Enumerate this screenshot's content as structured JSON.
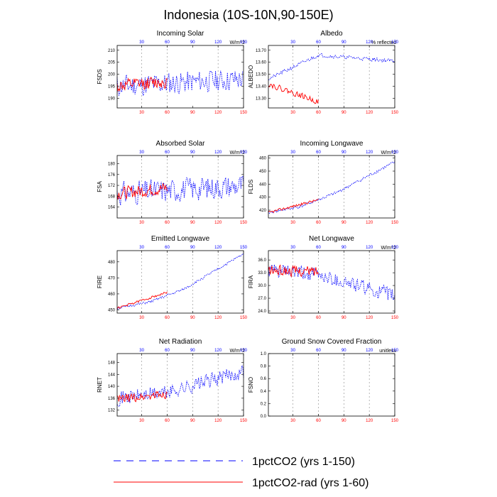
{
  "figure": {
    "title": "Indonesia (10S-10N,90-150E)",
    "colors": {
      "blue": "#0000ff",
      "red": "#ff0000",
      "grid": "#888888"
    }
  },
  "legend": [
    {
      "label": "1pctCO2 (yrs 1-150)",
      "color": "#0000ff",
      "style": "dashed"
    },
    {
      "label": "1pctCO2-rad (yrs 1-60)",
      "color": "#ff0000",
      "style": "solid"
    }
  ],
  "x_ticks": [
    "30",
    "60",
    "90",
    "120",
    "150"
  ],
  "chart_data": [
    {
      "type": "line",
      "title": "Incoming Solar",
      "ylabel": "FSDS",
      "units": "W/m^2",
      "ylim": [
        186,
        212
      ],
      "yticks": [
        190,
        195,
        200,
        205,
        210
      ],
      "ytick_labels": [
        "190",
        "195",
        "200",
        "205",
        "210"
      ],
      "xlim": [
        1,
        150
      ],
      "vgrid": [
        30,
        60,
        120
      ],
      "series": [
        {
          "name": "1pctCO2 (yrs 1-150)",
          "color": "#0000ff",
          "style": "dashed",
          "x": [
            1,
            150
          ],
          "y_mean": [
            195,
            198
          ],
          "y_amp": 6,
          "seed": 11
        },
        {
          "name": "1pctCO2-rad (yrs 1-60)",
          "color": "#ff0000",
          "style": "solid",
          "x": [
            1,
            60
          ],
          "y_mean": [
            195,
            197
          ],
          "y_amp": 3.5,
          "seed": 12
        }
      ]
    },
    {
      "type": "line",
      "title": "Albedo",
      "ylabel": "ALBEDO",
      "units": "% reflected",
      "ylim": [
        13.22,
        13.74
      ],
      "yticks": [
        13.3,
        13.4,
        13.5,
        13.6,
        13.7
      ],
      "ytick_labels": [
        "13.30",
        "13.40",
        "13.50",
        "13.60",
        "13.70"
      ],
      "xlim": [
        1,
        150
      ],
      "vgrid": [
        30,
        60,
        90,
        120
      ],
      "series": [
        {
          "name": "1pctCO2 (yrs 1-150)",
          "color": "#0000ff",
          "style": "dashed",
          "x": [
            1,
            60,
            150
          ],
          "y_mean": [
            13.46,
            13.66,
            13.61
          ],
          "y_amp": 0.02,
          "seed": 21
        },
        {
          "name": "1pctCO2-rad (yrs 1-60)",
          "color": "#ff0000",
          "style": "solid",
          "x": [
            1,
            60
          ],
          "y_mean": [
            13.42,
            13.27
          ],
          "y_amp": 0.03,
          "seed": 22
        }
      ]
    },
    {
      "type": "line",
      "title": "Absorbed Solar",
      "ylabel": "FSA",
      "units": "W/m^2",
      "ylim": [
        160,
        183
      ],
      "yticks": [
        164,
        168,
        172,
        176,
        180
      ],
      "ytick_labels": [
        "164",
        "168",
        "172",
        "176",
        "180"
      ],
      "xlim": [
        1,
        150
      ],
      "vgrid": [
        30,
        60,
        120
      ],
      "series": [
        {
          "name": "1pctCO2 (yrs 1-150)",
          "color": "#0000ff",
          "style": "dashed",
          "x": [
            1,
            150
          ],
          "y_mean": [
            169,
            172
          ],
          "y_amp": 5.5,
          "seed": 31
        },
        {
          "name": "1pctCO2-rad (yrs 1-60)",
          "color": "#ff0000",
          "style": "solid",
          "x": [
            1,
            60
          ],
          "y_mean": [
            169,
            171
          ],
          "y_amp": 3,
          "seed": 32
        }
      ]
    },
    {
      "type": "line",
      "title": "Incoming Longwave",
      "ylabel": "FLDS",
      "units": "W/m^2",
      "ylim": [
        414,
        462
      ],
      "yticks": [
        420,
        430,
        440,
        450,
        460
      ],
      "ytick_labels": [
        "420",
        "430",
        "440",
        "450",
        "460"
      ],
      "xlim": [
        1,
        150
      ],
      "vgrid": [
        30,
        60,
        90,
        120
      ],
      "series": [
        {
          "name": "1pctCO2 (yrs 1-150)",
          "color": "#0000ff",
          "style": "dashed",
          "x": [
            1,
            40,
            80,
            150
          ],
          "y_mean": [
            418,
            423,
            433,
            457
          ],
          "y_amp": 1.5,
          "seed": 41
        },
        {
          "name": "1pctCO2-rad (yrs 1-60)",
          "color": "#ff0000",
          "style": "solid",
          "x": [
            1,
            60
          ],
          "y_mean": [
            418,
            428
          ],
          "y_amp": 1.3,
          "seed": 42
        }
      ]
    },
    {
      "type": "line",
      "title": "Emitted Longwave",
      "ylabel": "FIRE",
      "units": "",
      "ylim": [
        448,
        487
      ],
      "yticks": [
        450,
        460,
        470,
        480
      ],
      "ytick_labels": [
        "450",
        "460",
        "470",
        "480"
      ],
      "xlim": [
        1,
        150
      ],
      "vgrid": [
        30,
        60,
        90,
        120
      ],
      "series": [
        {
          "name": "1pctCO2 (yrs 1-150)",
          "color": "#0000ff",
          "style": "dashed",
          "x": [
            1,
            40,
            80,
            150
          ],
          "y_mean": [
            451,
            455,
            463,
            485
          ],
          "y_amp": 1.0,
          "seed": 51
        },
        {
          "name": "1pctCO2-rad (yrs 1-60)",
          "color": "#ff0000",
          "style": "solid",
          "x": [
            1,
            60
          ],
          "y_mean": [
            451,
            461
          ],
          "y_amp": 0.9,
          "seed": 52
        }
      ]
    },
    {
      "type": "line",
      "title": "Net Longwave",
      "ylabel": "FIRA",
      "units": "W/m^2",
      "ylim": [
        23.5,
        38.2
      ],
      "yticks": [
        24.0,
        27.0,
        30.0,
        33.0,
        36.0
      ],
      "ytick_labels": [
        "24.0",
        "27.0",
        "30.0",
        "33.0",
        "36.0"
      ],
      "xlim": [
        1,
        150
      ],
      "vgrid": [
        30,
        60,
        90,
        120
      ],
      "series": [
        {
          "name": "1pctCO2 (yrs 1-150)",
          "color": "#0000ff",
          "style": "dashed",
          "x": [
            1,
            60,
            150
          ],
          "y_mean": [
            33.5,
            32.5,
            27.5
          ],
          "y_amp": 2.2,
          "seed": 61
        },
        {
          "name": "1pctCO2-rad (yrs 1-60)",
          "color": "#ff0000",
          "style": "solid",
          "x": [
            1,
            60
          ],
          "y_mean": [
            33.5,
            33.3
          ],
          "y_amp": 1.6,
          "seed": 62
        }
      ]
    },
    {
      "type": "line",
      "title": "Net Radiation",
      "ylabel": "RNET",
      "units": "W/m^2",
      "ylim": [
        130,
        151
      ],
      "yticks": [
        132,
        136,
        140,
        144,
        148
      ],
      "ytick_labels": [
        "132",
        "136",
        "140",
        "144",
        "148"
      ],
      "xlim": [
        1,
        150
      ],
      "vgrid": [
        30,
        60,
        90,
        120
      ],
      "series": [
        {
          "name": "1pctCO2 (yrs 1-150)",
          "color": "#0000ff",
          "style": "dashed",
          "x": [
            1,
            60,
            150
          ],
          "y_mean": [
            136,
            138,
            145
          ],
          "y_amp": 3.2,
          "seed": 71
        },
        {
          "name": "1pctCO2-rad (yrs 1-60)",
          "color": "#ff0000",
          "style": "solid",
          "x": [
            1,
            60
          ],
          "y_mean": [
            135.5,
            137.5
          ],
          "y_amp": 2,
          "seed": 72
        }
      ]
    },
    {
      "type": "line",
      "title": "Ground Snow Covered Fraction",
      "ylabel": "FSNO",
      "units": "unitless",
      "ylim": [
        0.0,
        1.0
      ],
      "yticks": [
        0.0,
        0.2,
        0.4,
        0.6,
        0.8,
        1.0
      ],
      "ytick_labels": [
        "0.0",
        "0.2",
        "0.4",
        "0.6",
        "0.8",
        "1.0"
      ],
      "xlim": [
        1,
        150
      ],
      "vgrid": [
        30,
        60,
        90,
        120
      ],
      "series": []
    }
  ]
}
